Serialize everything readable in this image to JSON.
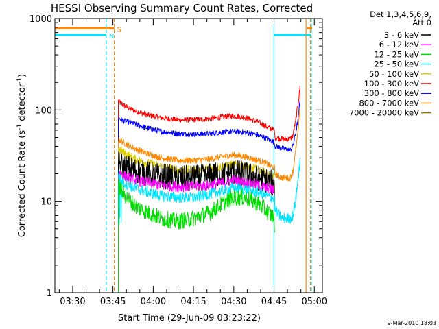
{
  "chart_data": {
    "type": "line",
    "title": "HESSI Observing Summary Count Rates, Corrected",
    "xlabel": "Start Time (29-Jun-09 03:23:22)",
    "ylabel_main": "Corrected Count Rate (s",
    "ylabel_sup1": "-1",
    "ylabel_mid": " detector",
    "ylabel_sup2": "-1",
    "ylabel_end": ")",
    "yscale": "log",
    "ylim": [
      1,
      1000
    ],
    "xlim": [
      203.37,
      303.0
    ],
    "x_unit": "minutes after 00:00 UT",
    "yticks": [
      {
        "value": 1,
        "label": "1"
      },
      {
        "value": 10,
        "label": "10"
      },
      {
        "value": 100,
        "label": "100"
      },
      {
        "value": 1000,
        "label": "1000"
      }
    ],
    "xticks": [
      {
        "value": 210,
        "label": "03:30"
      },
      {
        "value": 225,
        "label": "03:45"
      },
      {
        "value": 240,
        "label": "04:00"
      },
      {
        "value": 255,
        "label": "04:15"
      },
      {
        "value": 270,
        "label": "04:30"
      },
      {
        "value": 285,
        "label": "04:45"
      },
      {
        "value": 300,
        "label": "05:00"
      }
    ],
    "legend": {
      "position": "right",
      "header": [
        "Det 1,3,4,5,6,9,",
        "Att 0"
      ],
      "entries": [
        {
          "label": "3 - 6 keV",
          "color": "#000000"
        },
        {
          "label": "6 - 12 keV",
          "color": "#ff00ff"
        },
        {
          "label": "12 - 25 keV",
          "color": "#00dd00"
        },
        {
          "label": "25 - 50 keV",
          "color": "#00e5ff"
        },
        {
          "label": "50 - 100 keV",
          "color": "#ddcc00"
        },
        {
          "label": "100 - 300 keV",
          "color": "#ff0000"
        },
        {
          "label": "300 - 800 keV",
          "color": "#0000ff"
        },
        {
          "label": "800 - 7000 keV",
          "color": "#ff8800"
        },
        {
          "label": "7000 - 20000 keV",
          "color": "#997700"
        }
      ]
    },
    "series": [
      {
        "color": "#ff0000",
        "noise": 0.03,
        "end_drop": true,
        "points": [
          [
            227.0,
            125
          ],
          [
            229,
            112
          ],
          [
            233,
            98
          ],
          [
            238,
            88
          ],
          [
            243,
            82
          ],
          [
            249,
            78
          ],
          [
            255,
            78
          ],
          [
            261,
            80
          ],
          [
            266,
            84
          ],
          [
            270,
            86
          ],
          [
            274,
            83
          ],
          [
            279,
            74
          ],
          [
            282,
            66
          ],
          [
            284,
            62
          ],
          [
            285.2,
            60
          ],
          [
            285.3,
            50
          ],
          [
            288,
            48
          ],
          [
            291,
            48
          ],
          [
            292,
            52
          ],
          [
            293,
            75
          ],
          [
            294,
            120
          ],
          [
            294.7,
            180
          ]
        ]
      },
      {
        "color": "#0000ff",
        "noise": 0.03,
        "points": [
          [
            227.0,
            82
          ],
          [
            229,
            76
          ],
          [
            233,
            70
          ],
          [
            238,
            63
          ],
          [
            243,
            58
          ],
          [
            249,
            55
          ],
          [
            255,
            54
          ],
          [
            261,
            55
          ],
          [
            266,
            57
          ],
          [
            270,
            58
          ],
          [
            274,
            57
          ],
          [
            279,
            53
          ],
          [
            282,
            49
          ],
          [
            284,
            46
          ],
          [
            285.2,
            44
          ],
          [
            285.3,
            40
          ],
          [
            288,
            38
          ],
          [
            291,
            36
          ],
          [
            292,
            40
          ],
          [
            293,
            55
          ],
          [
            294,
            80
          ],
          [
            294.7,
            130
          ]
        ]
      },
      {
        "color": "#ff8800",
        "noise": 0.035,
        "points": [
          [
            227.0,
            48
          ],
          [
            229,
            44
          ],
          [
            233,
            38
          ],
          [
            238,
            33
          ],
          [
            243,
            30
          ],
          [
            249,
            28
          ],
          [
            255,
            28
          ],
          [
            261,
            29
          ],
          [
            266,
            31
          ],
          [
            270,
            32
          ],
          [
            274,
            31
          ],
          [
            279,
            28
          ],
          [
            282,
            26
          ],
          [
            284,
            24
          ],
          [
            285.2,
            23
          ],
          [
            285.3,
            20
          ],
          [
            288,
            18
          ],
          [
            291,
            18
          ],
          [
            292,
            21
          ],
          [
            293,
            35
          ],
          [
            294,
            60
          ],
          [
            294.7,
            110
          ]
        ]
      },
      {
        "color": "#ddcc00",
        "noise": 0.05,
        "points": [
          [
            227.0,
            38
          ],
          [
            229,
            34
          ],
          [
            233,
            29
          ],
          [
            238,
            26
          ],
          [
            243,
            24
          ],
          [
            249,
            22
          ],
          [
            255,
            22
          ],
          [
            261,
            23
          ],
          [
            266,
            24
          ],
          [
            270,
            25
          ],
          [
            274,
            24
          ],
          [
            279,
            22
          ],
          [
            282,
            20
          ],
          [
            284,
            19
          ],
          [
            285.2,
            18
          ]
        ]
      },
      {
        "color": "#000000",
        "noise": 0.14,
        "points": [
          [
            227.0,
            26
          ],
          [
            229,
            24
          ],
          [
            233,
            22
          ],
          [
            238,
            20
          ],
          [
            243,
            19
          ],
          [
            249,
            18
          ],
          [
            255,
            18
          ],
          [
            261,
            19
          ],
          [
            266,
            20
          ],
          [
            270,
            21
          ],
          [
            274,
            20
          ],
          [
            279,
            18
          ],
          [
            282,
            17
          ],
          [
            284,
            16
          ],
          [
            285.2,
            15
          ]
        ]
      },
      {
        "color": "#ff00ff",
        "noise": 0.06,
        "points": [
          [
            227.0,
            21
          ],
          [
            229,
            19
          ],
          [
            233,
            17
          ],
          [
            238,
            16
          ],
          [
            243,
            15
          ],
          [
            249,
            14.5
          ],
          [
            255,
            14.5
          ],
          [
            261,
            15
          ],
          [
            266,
            16
          ],
          [
            270,
            17
          ],
          [
            274,
            16
          ],
          [
            279,
            15
          ],
          [
            282,
            14
          ],
          [
            284,
            13.5
          ],
          [
            285.2,
            13
          ]
        ]
      },
      {
        "color": "#00e5ff",
        "noise": 0.06,
        "start_spike": true,
        "points": [
          [
            227.0,
            18
          ],
          [
            229,
            16
          ],
          [
            233,
            14
          ],
          [
            238,
            12.5
          ],
          [
            243,
            11.5
          ],
          [
            249,
            11
          ],
          [
            255,
            11
          ],
          [
            261,
            12
          ],
          [
            266,
            13
          ],
          [
            270,
            14
          ],
          [
            274,
            13.5
          ],
          [
            279,
            12.5
          ],
          [
            282,
            11.5
          ],
          [
            284,
            11
          ],
          [
            285.2,
            10.5
          ],
          [
            285.3,
            8
          ],
          [
            288,
            6.5
          ],
          [
            291,
            6.5
          ],
          [
            292,
            7
          ],
          [
            293,
            10
          ],
          [
            294,
            18
          ],
          [
            294.7,
            30
          ]
        ]
      },
      {
        "color": "#00dd00",
        "noise": 0.09,
        "points": [
          [
            227.0,
            15
          ],
          [
            229,
            12
          ],
          [
            233,
            9
          ],
          [
            238,
            7.5
          ],
          [
            243,
            6.5
          ],
          [
            249,
            6
          ],
          [
            255,
            6.5
          ],
          [
            261,
            7.5
          ],
          [
            266,
            9.5
          ],
          [
            270,
            11
          ],
          [
            274,
            11
          ],
          [
            279,
            9.5
          ],
          [
            282,
            8
          ],
          [
            284,
            7
          ],
          [
            285.2,
            6.5
          ]
        ]
      }
    ],
    "vertical_lines": [
      {
        "x": 222.5,
        "color": "#00e5ff",
        "style": "dashed"
      },
      {
        "x": 225.5,
        "color": "#ff8800",
        "style": "dashed"
      },
      {
        "x": 285.0,
        "color": "#00e5ff",
        "style": "solid"
      },
      {
        "x": 296.9,
        "color": "#ff8800",
        "style": "solid"
      },
      {
        "x": 298.5,
        "color": "#ff8800",
        "style": "dashed"
      },
      {
        "x": 298.9,
        "color": "#00e5ff",
        "style": "dashed"
      }
    ],
    "flag_bars": [
      {
        "label": "S",
        "color": "#ff8800",
        "y": 780,
        "segments": [
          [
            203.37,
            225.5
          ],
          [
            297.4,
            299.2
          ]
        ]
      },
      {
        "label": "N",
        "color": "#00e5ff",
        "y": 660,
        "segments": [
          [
            203.37,
            222.5
          ],
          [
            285.0,
            298.9
          ]
        ]
      }
    ],
    "footnote": "9-Mar-2010 18:03"
  }
}
